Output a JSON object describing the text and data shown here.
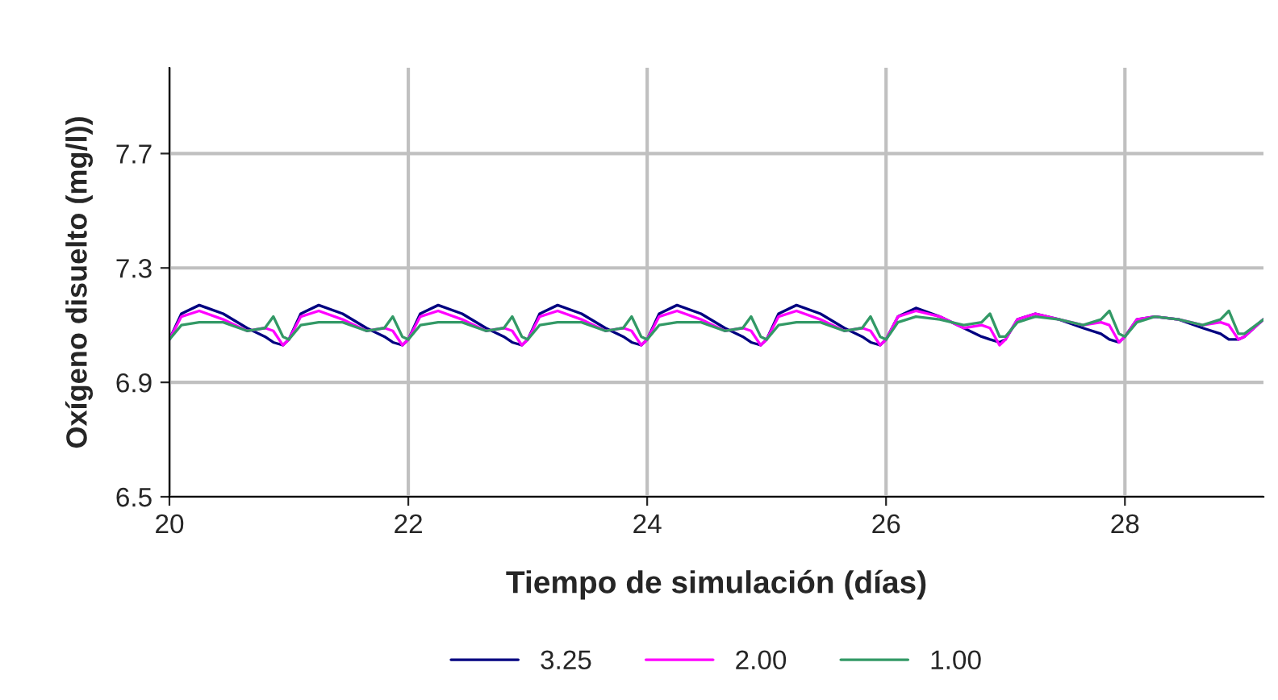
{
  "chart_data": {
    "type": "line",
    "xlabel": "Tiempo de simulación (días)",
    "ylabel": "Oxígeno disuelto (mg/l))",
    "xlim": [
      20,
      29.16
    ],
    "ylim": [
      6.5,
      8.0
    ],
    "xticks": [
      20,
      22,
      24,
      26,
      28
    ],
    "yticks": [
      6.5,
      6.9,
      7.3,
      7.7
    ],
    "grid": true,
    "legend": "bottom",
    "line_style": "solid",
    "marker": "none",
    "x": [
      20,
      20.1,
      20.25,
      20.45,
      20.65,
      20.8,
      20.87,
      20.95,
      21,
      21.1,
      21.25,
      21.45,
      21.65,
      21.8,
      21.87,
      21.95,
      22,
      22.1,
      22.25,
      22.45,
      22.65,
      22.8,
      22.87,
      22.95,
      23,
      23.1,
      23.25,
      23.45,
      23.65,
      23.8,
      23.87,
      23.95,
      24,
      24.1,
      24.25,
      24.45,
      24.65,
      24.8,
      24.87,
      24.95,
      25,
      25.1,
      25.25,
      25.45,
      25.65,
      25.8,
      25.87,
      25.95,
      26,
      26.1,
      26.25,
      26.45,
      26.65,
      26.8,
      26.87,
      26.95,
      27,
      27.1,
      27.25,
      27.45,
      27.65,
      27.8,
      27.87,
      27.95,
      28,
      28.1,
      28.25,
      28.45,
      28.65,
      28.8,
      28.87,
      28.95,
      29,
      29.16
    ],
    "series": [
      {
        "name": "3.25",
        "color": "#000080",
        "values": [
          7.05,
          7.14,
          7.17,
          7.14,
          7.09,
          7.06,
          7.04,
          7.03,
          7.05,
          7.14,
          7.17,
          7.14,
          7.09,
          7.06,
          7.04,
          7.03,
          7.05,
          7.14,
          7.17,
          7.14,
          7.09,
          7.06,
          7.04,
          7.03,
          7.05,
          7.14,
          7.17,
          7.14,
          7.09,
          7.06,
          7.04,
          7.03,
          7.05,
          7.14,
          7.17,
          7.14,
          7.09,
          7.06,
          7.04,
          7.03,
          7.05,
          7.14,
          7.17,
          7.14,
          7.09,
          7.06,
          7.04,
          7.03,
          7.05,
          7.13,
          7.16,
          7.13,
          7.09,
          7.06,
          7.05,
          7.04,
          7.05,
          7.12,
          7.14,
          7.12,
          7.09,
          7.07,
          7.05,
          7.04,
          7.06,
          7.12,
          7.13,
          7.12,
          7.09,
          7.07,
          7.05,
          7.05,
          7.06,
          7.12
        ]
      },
      {
        "name": "2.00",
        "color": "#ff00ff",
        "values": [
          7.05,
          7.13,
          7.15,
          7.12,
          7.08,
          7.09,
          7.08,
          7.03,
          7.05,
          7.13,
          7.15,
          7.12,
          7.08,
          7.09,
          7.08,
          7.03,
          7.05,
          7.13,
          7.15,
          7.12,
          7.08,
          7.09,
          7.08,
          7.03,
          7.05,
          7.13,
          7.15,
          7.12,
          7.08,
          7.09,
          7.08,
          7.03,
          7.05,
          7.13,
          7.15,
          7.12,
          7.08,
          7.09,
          7.08,
          7.03,
          7.05,
          7.13,
          7.15,
          7.12,
          7.08,
          7.09,
          7.08,
          7.03,
          7.05,
          7.13,
          7.15,
          7.13,
          7.09,
          7.1,
          7.09,
          7.03,
          7.05,
          7.12,
          7.14,
          7.12,
          7.1,
          7.11,
          7.1,
          7.04,
          7.06,
          7.12,
          7.13,
          7.12,
          7.1,
          7.11,
          7.1,
          7.05,
          7.06,
          7.12
        ]
      },
      {
        "name": "1.00",
        "color": "#339966",
        "values": [
          7.05,
          7.1,
          7.11,
          7.11,
          7.08,
          7.09,
          7.13,
          7.06,
          7.05,
          7.1,
          7.11,
          7.11,
          7.08,
          7.09,
          7.13,
          7.06,
          7.05,
          7.1,
          7.11,
          7.11,
          7.08,
          7.09,
          7.13,
          7.06,
          7.05,
          7.1,
          7.11,
          7.11,
          7.08,
          7.09,
          7.13,
          7.06,
          7.05,
          7.1,
          7.11,
          7.11,
          7.08,
          7.09,
          7.13,
          7.06,
          7.05,
          7.1,
          7.11,
          7.11,
          7.08,
          7.09,
          7.13,
          7.06,
          7.05,
          7.11,
          7.13,
          7.12,
          7.1,
          7.11,
          7.14,
          7.06,
          7.06,
          7.11,
          7.13,
          7.12,
          7.1,
          7.12,
          7.15,
          7.07,
          7.06,
          7.11,
          7.13,
          7.12,
          7.1,
          7.12,
          7.15,
          7.07,
          7.07,
          7.12
        ]
      }
    ]
  }
}
